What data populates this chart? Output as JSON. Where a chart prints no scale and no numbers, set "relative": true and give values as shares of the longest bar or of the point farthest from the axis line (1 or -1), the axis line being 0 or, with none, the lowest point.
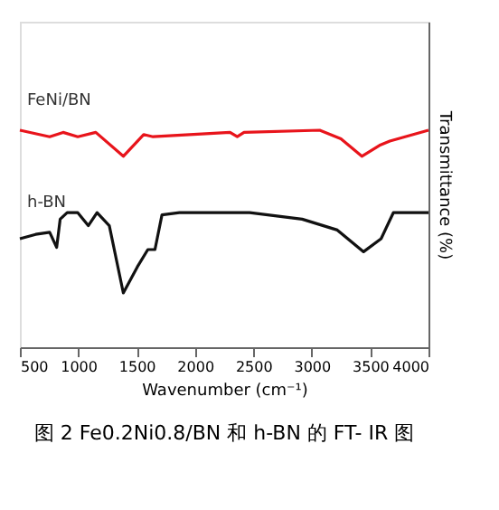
{
  "chart_data": {
    "type": "line",
    "relative": true,
    "xlabel": "Wavenumber (cm⁻¹)",
    "ylabel": "Transmittance (%)",
    "xlim": [
      500,
      4000
    ],
    "xticks": [
      500,
      1000,
      1500,
      2000,
      2500,
      3000,
      3500,
      4000
    ],
    "series": [
      {
        "name": "FeNi/BN",
        "color": "#e8141b",
        "x": [
          500,
          755,
          870,
          996,
          1150,
          1386,
          1560,
          1641,
          2300,
          2362,
          2420,
          3068,
          3250,
          3429,
          3580,
          3669,
          3800,
          4000
        ],
        "values": [
          1.0,
          0.97,
          0.99,
          0.97,
          0.99,
          0.88,
          0.98,
          0.97,
          0.99,
          0.97,
          0.99,
          1.0,
          0.96,
          0.88,
          0.93,
          0.95,
          0.97,
          1.0
        ]
      },
      {
        "name": "h-BN",
        "color": "#111111",
        "x": [
          500,
          635,
          755,
          815,
          845,
          905,
          996,
          1086,
          1161,
          1266,
          1386,
          1506,
          1596,
          1657,
          1717,
          1867,
          2468,
          2918,
          3219,
          3444,
          3594,
          3699,
          4000
        ],
        "values": [
          0.5,
          0.52,
          0.53,
          0.46,
          0.59,
          0.62,
          0.62,
          0.56,
          0.62,
          0.56,
          0.25,
          0.37,
          0.45,
          0.45,
          0.61,
          0.62,
          0.62,
          0.59,
          0.54,
          0.44,
          0.5,
          0.62,
          0.62
        ]
      }
    ],
    "legend": false,
    "grid": false,
    "tick_labels": "x",
    "annotations": [
      "图 2 Fe0.2Ni0.8/BN 和 h-BN 的 FT- IR 图"
    ]
  }
}
